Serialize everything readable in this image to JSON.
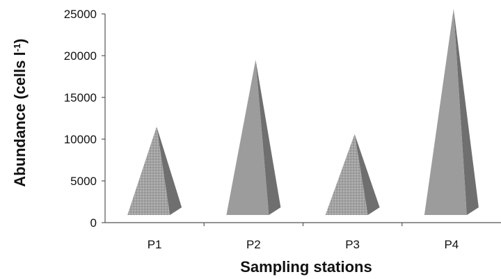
{
  "chart_data": {
    "type": "bar",
    "bar_shape": "pyramid",
    "categories": [
      "P1",
      "P2",
      "P3",
      "P4"
    ],
    "values": [
      11500,
      19500,
      10600,
      25600
    ],
    "xlabel": "Sampling stations",
    "ylabel_main": "Abundance (cells l",
    "ylabel_sup": "-1",
    "ylabel_end": ")",
    "ylim": [
      0,
      25000
    ],
    "yticks": [
      0,
      5000,
      10000,
      15000,
      20000,
      25000
    ],
    "grid": false,
    "legend": "none",
    "colors": {
      "front_face": "#9c9c9c",
      "side_face": "#6f6f6f",
      "base": "#b5b5b5",
      "axis": "#555555"
    }
  }
}
